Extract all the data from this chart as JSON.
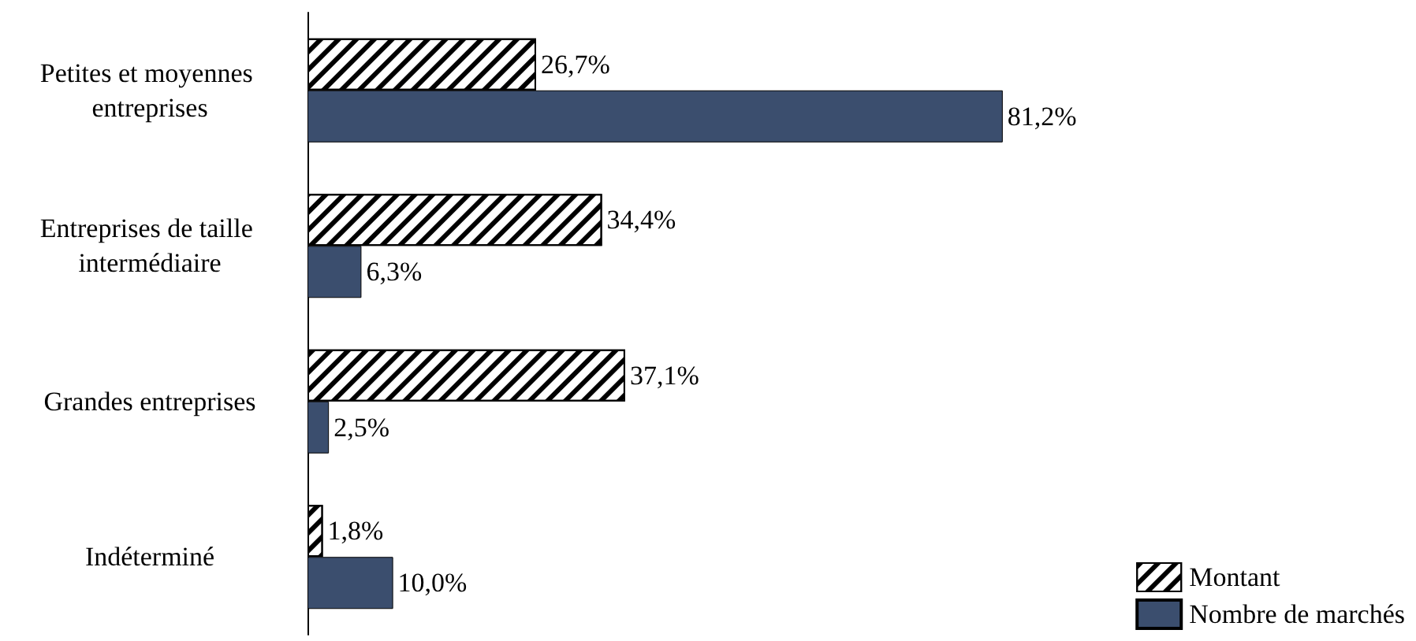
{
  "chart_data": {
    "type": "bar",
    "orientation": "horizontal",
    "categories": [
      "Petites et moyennes entreprises",
      "Entreprises de taille intermédiaire",
      "Grandes entreprises",
      "Indéterminé"
    ],
    "series": [
      {
        "name": "Montant",
        "color": "#000000",
        "values": [
          26.7,
          34.4,
          37.1,
          1.8
        ],
        "value_labels": [
          "26,7%",
          "34,4%",
          "37,1%",
          "1,8%"
        ]
      },
      {
        "name": "Nombre de marchés",
        "color": "#3b4e6e",
        "values": [
          81.2,
          6.3,
          2.5,
          10.0
        ],
        "value_labels": [
          "81,2%",
          "6,3%",
          "2,5%",
          "10,0%"
        ]
      }
    ],
    "legend": "bottom right"
  }
}
